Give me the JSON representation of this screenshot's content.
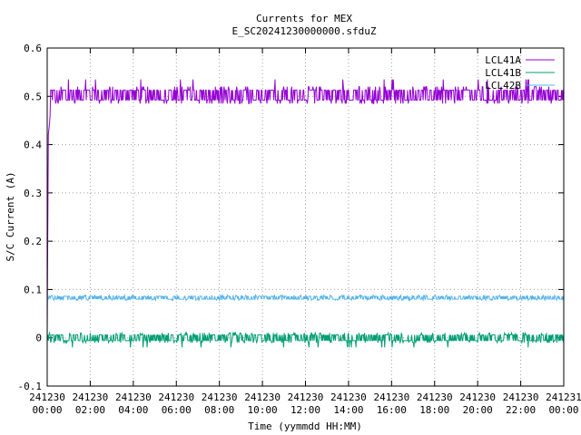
{
  "chart_data": {
    "type": "line",
    "title": "Currents for MEX",
    "subtitle": "E_SC20241230000000.sfduZ",
    "xlabel": "Time (yymmdd HH:MM)",
    "ylabel": "S/C Current (A)",
    "xlim": [
      "241230 00:00",
      "241231 00:00"
    ],
    "ylim": [
      -0.1,
      0.6
    ],
    "yticks": [
      "-0.1",
      "0",
      "0.1",
      "0.2",
      "0.3",
      "0.4",
      "0.5",
      "0.6"
    ],
    "xticks": [
      {
        "date": "241230",
        "time": "00:00"
      },
      {
        "date": "241230",
        "time": "02:00"
      },
      {
        "date": "241230",
        "time": "04:00"
      },
      {
        "date": "241230",
        "time": "06:00"
      },
      {
        "date": "241230",
        "time": "08:00"
      },
      {
        "date": "241230",
        "time": "10:00"
      },
      {
        "date": "241230",
        "time": "12:00"
      },
      {
        "date": "241230",
        "time": "14:00"
      },
      {
        "date": "241230",
        "time": "16:00"
      },
      {
        "date": "241230",
        "time": "18:00"
      },
      {
        "date": "241230",
        "time": "20:00"
      },
      {
        "date": "241230",
        "time": "22:00"
      },
      {
        "date": "241231",
        "time": "00:00"
      }
    ],
    "grid": true,
    "legend_position": "top-right",
    "series": [
      {
        "name": "LCL41A",
        "color": "#9400d3",
        "x": [
          "241230 00:00",
          "241230 00:03",
          "241230 00:06",
          "241230 00:09",
          "241230 00:12",
          "241230 00:15",
          "241230 00:20",
          "241230 00:30",
          "241230 02:00",
          "241230 06:00",
          "241230 10:00",
          "241230 14:00",
          "241230 18:00",
          "241230 22:00",
          "241231 00:00"
        ],
        "values": [
          0.0,
          0.42,
          0.44,
          0.47,
          0.49,
          0.5,
          0.5,
          0.5,
          0.5,
          0.5,
          0.5,
          0.5,
          0.5,
          0.5,
          0.5
        ],
        "band": [
          0.485,
          0.52
        ]
      },
      {
        "name": "LCL41B",
        "color": "#009e73",
        "x": [
          "241230 00:00",
          "241231 00:00"
        ],
        "values": [
          0.005,
          0.005
        ],
        "band": [
          -0.01,
          0.01
        ]
      },
      {
        "name": "LCL42B",
        "color": "#56b4e9",
        "x": [
          "241230 00:00",
          "241231 00:00"
        ],
        "values": [
          0.083,
          0.083
        ],
        "band": [
          0.078,
          0.088
        ]
      }
    ]
  }
}
